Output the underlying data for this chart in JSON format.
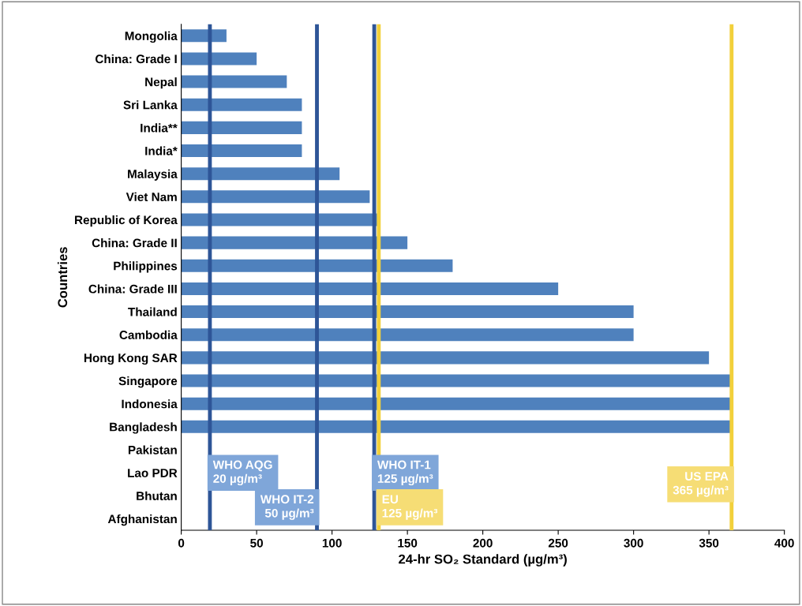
{
  "chart_data": {
    "type": "bar",
    "orientation": "horizontal",
    "xlabel": "24-hr SO₂ Standard (µg/m³)",
    "ylabel": "Countries",
    "categories": [
      "Mongolia",
      "China: Grade I",
      "Nepal",
      "Sri Lanka",
      "India**",
      "India*",
      "Malaysia",
      "Viet Nam",
      "Republic of Korea",
      "China: Grade II",
      "Philippines",
      "China: Grade III",
      "Thailand",
      "Cambodia",
      "Hong Kong SAR",
      "Singapore",
      "Indonesia",
      "Bangladesh",
      "Pakistan",
      "Lao PDR",
      "Bhutan",
      "Afghanistan"
    ],
    "values": [
      30,
      50,
      70,
      80,
      80,
      80,
      105,
      125,
      130,
      150,
      180,
      250,
      300,
      300,
      350,
      365,
      365,
      365,
      null,
      null,
      null,
      null
    ],
    "color": "#4f81bd",
    "xlim": [
      0,
      400
    ],
    "xticks": [
      0,
      50,
      100,
      150,
      200,
      250,
      300,
      350,
      400
    ],
    "ref_lines": [
      {
        "axis": "x",
        "value": 19,
        "label": "WHO AQG\n20 µg/m³",
        "color": "#2e5597"
      },
      {
        "axis": "x",
        "value": 90,
        "label": "WHO IT-2\n50 µg/m³",
        "color": "#2e5597"
      },
      {
        "axis": "x",
        "value": 128,
        "label": "WHO IT-1\n125 µg/m³",
        "color": "#2e5597"
      },
      {
        "axis": "x",
        "value": 131,
        "label": "EU\n125 µg/m³",
        "color": "#f2d03b"
      },
      {
        "axis": "x",
        "value": 365,
        "label": "US EPA\n365 µg/m³",
        "color": "#f2d03b"
      }
    ],
    "grid": false,
    "legend": false
  }
}
